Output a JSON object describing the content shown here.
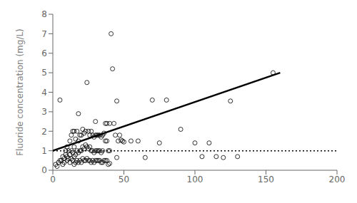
{
  "chart_data": {
    "type": "scatter",
    "ylabel": "Fluoride concentration (mg/L)",
    "xlim": [
      0,
      200
    ],
    "ylim": [
      0,
      8
    ],
    "xticks": [
      0,
      50,
      100,
      150,
      200
    ],
    "yticks": [
      0,
      1,
      2,
      3,
      4,
      5,
      6,
      7,
      8
    ],
    "series": [
      {
        "type": "scatter",
        "marker": "circle",
        "color": "#000000",
        "x": [
          2,
          3,
          4,
          5,
          5,
          6,
          7,
          7,
          8,
          8,
          9,
          9,
          10,
          10,
          10,
          11,
          11,
          12,
          12,
          12,
          13,
          13,
          13,
          14,
          14,
          14,
          15,
          15,
          15,
          15,
          16,
          16,
          16,
          17,
          17,
          17,
          18,
          18,
          18,
          18,
          19,
          19,
          19,
          20,
          20,
          20,
          21,
          21,
          21,
          22,
          22,
          22,
          23,
          23,
          23,
          24,
          24,
          24,
          25,
          25,
          25,
          26,
          26,
          26,
          27,
          27,
          27,
          28,
          28,
          28,
          29,
          29,
          29,
          30,
          30,
          30,
          30,
          31,
          31,
          31,
          32,
          32,
          32,
          33,
          33,
          33,
          34,
          34,
          34,
          35,
          35,
          35,
          36,
          36,
          37,
          37,
          37,
          38,
          38,
          38,
          39,
          39,
          40,
          40,
          40,
          41,
          42,
          43,
          44,
          45,
          45,
          46,
          47,
          48,
          49,
          50,
          55,
          60,
          65,
          70,
          75,
          80,
          90,
          100,
          105,
          110,
          115,
          120,
          125,
          130,
          155
        ],
        "values": [
          0.3,
          0.2,
          0.4,
          0.5,
          3.6,
          0.5,
          0.3,
          0.7,
          0.4,
          0.6,
          0.8,
          1.0,
          0.5,
          0.7,
          1.2,
          0.6,
          1.0,
          0.4,
          0.8,
          1.5,
          0.6,
          1.0,
          1.8,
          0.5,
          0.9,
          2.0,
          0.3,
          0.7,
          1.2,
          2.0,
          0.4,
          0.8,
          1.6,
          0.5,
          1.0,
          2.0,
          0.4,
          0.9,
          1.5,
          2.9,
          0.5,
          1.0,
          1.8,
          0.4,
          1.0,
          1.8,
          0.6,
          1.2,
          2.1,
          0.5,
          1.1,
          1.9,
          0.5,
          1.3,
          2.0,
          0.6,
          1.2,
          4.5,
          0.5,
          1.1,
          2.0,
          0.5,
          1.2,
          1.8,
          0.4,
          1.0,
          2.0,
          0.5,
          1.0,
          1.8,
          0.4,
          0.9,
          1.7,
          0.5,
          1.0,
          1.8,
          2.5,
          0.5,
          1.0,
          1.8,
          0.5,
          1.0,
          1.8,
          0.5,
          1.0,
          1.8,
          0.4,
          0.9,
          1.7,
          0.4,
          1.0,
          1.8,
          0.5,
          1.9,
          0.5,
          1.5,
          2.4,
          0.5,
          1.5,
          2.4,
          0.3,
          1.0,
          0.35,
          1.0,
          2.4,
          7.0,
          5.2,
          2.4,
          1.8,
          0.65,
          3.55,
          1.5,
          1.8,
          1.55,
          1.5,
          1.45,
          1.5,
          1.5,
          0.65,
          3.6,
          1.4,
          3.6,
          2.1,
          1.4,
          0.7,
          1.4,
          0.7,
          0.65,
          3.55,
          0.7,
          5.0
        ]
      },
      {
        "type": "line",
        "line_style": "solid",
        "color": "#000000",
        "x": [
          0,
          160
        ],
        "values": [
          1.0,
          5.0
        ]
      },
      {
        "type": "line",
        "line_style": "dotted",
        "color": "#000000",
        "x": [
          0,
          200
        ],
        "values": [
          1.0,
          1.0
        ]
      }
    ]
  }
}
